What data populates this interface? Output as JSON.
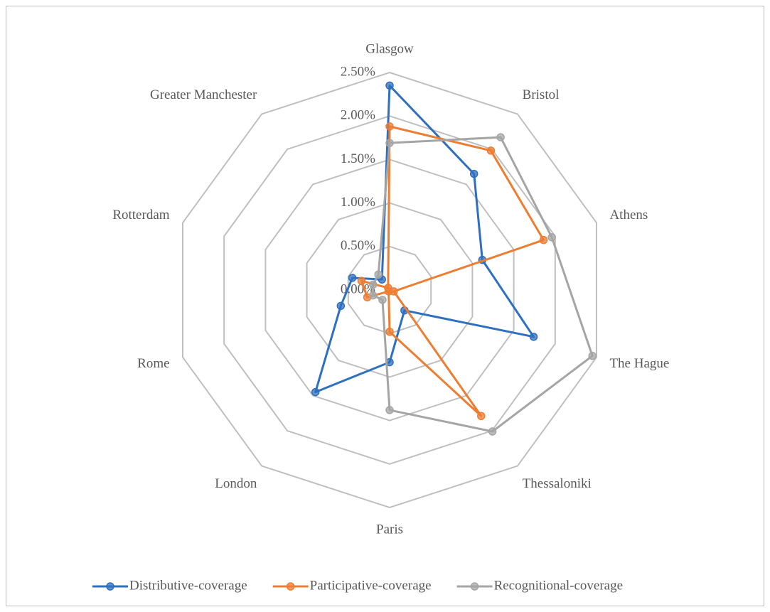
{
  "chart_data": {
    "type": "radar",
    "categories": [
      "Glasgow",
      "Bristol",
      "Athens",
      "The Hague",
      "Thessaloniki",
      "Paris",
      "London",
      "Rome",
      "Rotterdam",
      "Greater Manchester"
    ],
    "series": [
      {
        "name": "Distributive-coverage",
        "color": "#2f6fbf",
        "values": [
          2.35,
          1.65,
          1.12,
          1.74,
          0.29,
          0.83,
          1.45,
          0.59,
          0.45,
          0.15
        ]
      },
      {
        "name": "Participative-coverage",
        "color": "#ed7d31",
        "values": [
          1.88,
          1.98,
          1.86,
          0.05,
          1.79,
          0.48,
          0.02,
          0.27,
          0.34,
          0.03
        ]
      },
      {
        "name": "Recognitional-coverage",
        "color": "#a5a5a5",
        "values": [
          1.69,
          2.17,
          1.96,
          2.45,
          2.01,
          1.38,
          0.14,
          0.2,
          0.2,
          0.22
        ]
      }
    ],
    "ylim": [
      0,
      2.5
    ],
    "yticks": [
      {
        "value": 0,
        "label": "0.00%"
      },
      {
        "value": 0.5,
        "label": "0.50%"
      },
      {
        "value": 1,
        "label": "1.00%"
      },
      {
        "value": 1.5,
        "label": "1.50%"
      },
      {
        "value": 2,
        "label": "2.00%"
      },
      {
        "value": 2.5,
        "label": "2.50%"
      }
    ],
    "legend": "bottom"
  }
}
